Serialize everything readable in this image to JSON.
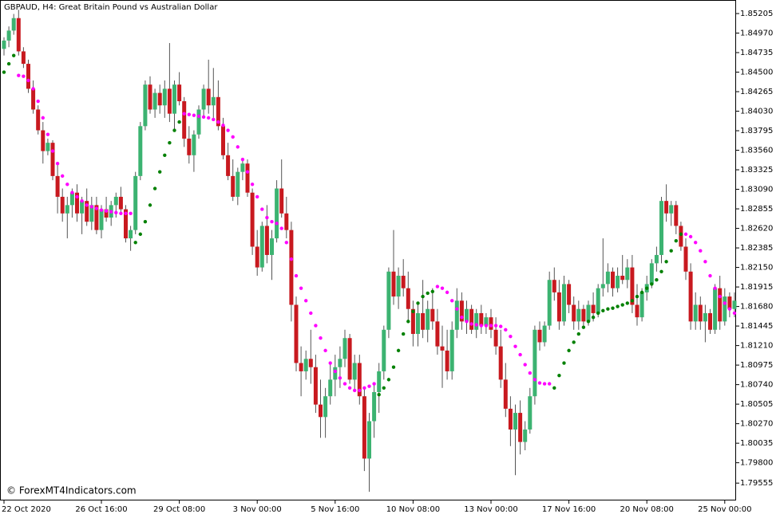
{
  "chart_data": {
    "type": "candlestick",
    "title": "GBPAUD, H4:  Great Britain Pound vs Australian Dollar",
    "watermark": "© ForexMT4Indicators.com",
    "categories": [
      "22 Oct 2020",
      null,
      null,
      null,
      null,
      null,
      null,
      null,
      null,
      null,
      null,
      null,
      null,
      null,
      null,
      null,
      null,
      null,
      null,
      null,
      "26 Oct 16:00",
      null,
      null,
      null,
      null,
      null,
      null,
      null,
      null,
      null,
      null,
      null,
      null,
      null,
      null,
      null,
      "29 Oct 08:00",
      null,
      null,
      null,
      null,
      null,
      null,
      null,
      null,
      null,
      null,
      null,
      null,
      null,
      null,
      null,
      "3 Nov 00:00",
      null,
      null,
      null,
      null,
      null,
      null,
      null,
      null,
      null,
      null,
      null,
      null,
      null,
      null,
      null,
      "5 Nov 16:00",
      null,
      null,
      null,
      null,
      null,
      null,
      null,
      null,
      null,
      null,
      null,
      null,
      null,
      null,
      null,
      "10 Nov 08:00",
      null,
      null,
      null,
      null,
      null,
      null,
      null,
      null,
      null,
      null,
      null,
      null,
      null,
      null,
      null,
      "13 Nov 00:00",
      null,
      null,
      null,
      null,
      null,
      null,
      null,
      null,
      null,
      null,
      null,
      null,
      null,
      null,
      null,
      "17 Nov 16:00",
      null,
      null,
      null,
      null,
      null,
      null,
      null,
      null,
      null,
      null,
      null,
      null,
      null,
      null,
      null,
      "20 Nov 08:00",
      null,
      null,
      null,
      null,
      null,
      null,
      null,
      null,
      null,
      null,
      null,
      null,
      null,
      null,
      null,
      "25 Nov 00:00",
      null,
      null
    ],
    "candles": [
      [
        1.8478,
        1.8492,
        1.847,
        1.8488
      ],
      [
        1.8488,
        1.8505,
        1.848,
        1.85
      ],
      [
        1.85,
        1.852,
        1.8495,
        1.8515
      ],
      [
        1.8515,
        1.8525,
        1.847,
        1.8475
      ],
      [
        1.8475,
        1.848,
        1.8455,
        1.846
      ],
      [
        1.846,
        1.8465,
        1.8425,
        1.843
      ],
      [
        1.843,
        1.844,
        1.84,
        1.8405
      ],
      [
        1.8405,
        1.841,
        1.8375,
        1.838
      ],
      [
        1.838,
        1.839,
        1.834,
        1.8355
      ],
      [
        1.8355,
        1.837,
        1.835,
        1.8365
      ],
      [
        1.8365,
        1.8368,
        1.832,
        1.8325
      ],
      [
        1.8325,
        1.834,
        1.828,
        1.83
      ],
      [
        1.83,
        1.831,
        1.827,
        1.828
      ],
      [
        1.828,
        1.83,
        1.825,
        1.829
      ],
      [
        1.829,
        1.831,
        1.8275,
        1.8305
      ],
      [
        1.8305,
        1.8315,
        1.827,
        1.828
      ],
      [
        1.828,
        1.83,
        1.8255,
        1.8295
      ],
      [
        1.8295,
        1.831,
        1.8265,
        1.827
      ],
      [
        1.827,
        1.83,
        1.826,
        1.829
      ],
      [
        1.829,
        1.83,
        1.8255,
        1.826
      ],
      [
        1.826,
        1.829,
        1.825,
        1.8285
      ],
      [
        1.8285,
        1.83,
        1.827,
        1.8275
      ],
      [
        1.8275,
        1.8295,
        1.8265,
        1.829
      ],
      [
        1.829,
        1.8305,
        1.8275,
        1.83
      ],
      [
        1.83,
        1.8312,
        1.828,
        1.8285
      ],
      [
        1.8285,
        1.829,
        1.8245,
        1.825
      ],
      [
        1.825,
        1.8265,
        1.8235,
        1.826
      ],
      [
        1.826,
        1.833,
        1.8255,
        1.8325
      ],
      [
        1.8325,
        1.839,
        1.832,
        1.8385
      ],
      [
        1.8385,
        1.844,
        1.838,
        1.8435
      ],
      [
        1.8435,
        1.8445,
        1.84,
        1.8405
      ],
      [
        1.8405,
        1.843,
        1.8395,
        1.8425
      ],
      [
        1.8425,
        1.8435,
        1.84,
        1.841
      ],
      [
        1.841,
        1.844,
        1.8395,
        1.843
      ],
      [
        1.843,
        1.8485,
        1.839,
        1.84
      ],
      [
        1.84,
        1.844,
        1.838,
        1.8435
      ],
      [
        1.8435,
        1.845,
        1.841,
        1.8415
      ],
      [
        1.8415,
        1.842,
        1.836,
        1.837
      ],
      [
        1.837,
        1.8385,
        1.834,
        1.835
      ],
      [
        1.835,
        1.838,
        1.833,
        1.8375
      ],
      [
        1.8375,
        1.841,
        1.837,
        1.8405
      ],
      [
        1.8405,
        1.8435,
        1.8395,
        1.843
      ],
      [
        1.843,
        1.8465,
        1.84,
        1.841
      ],
      [
        1.841,
        1.8455,
        1.8395,
        1.842
      ],
      [
        1.842,
        1.844,
        1.838,
        1.8385
      ],
      [
        1.8385,
        1.8395,
        1.8345,
        1.835
      ],
      [
        1.835,
        1.8365,
        1.832,
        1.8325
      ],
      [
        1.8325,
        1.8345,
        1.8295,
        1.83
      ],
      [
        1.83,
        1.8335,
        1.829,
        1.833
      ],
      [
        1.833,
        1.8345,
        1.832,
        1.834
      ],
      [
        1.834,
        1.8345,
        1.83,
        1.8305
      ],
      [
        1.8305,
        1.831,
        1.823,
        1.824
      ],
      [
        1.824,
        1.826,
        1.8205,
        1.8215
      ],
      [
        1.8215,
        1.827,
        1.821,
        1.8265
      ],
      [
        1.8265,
        1.829,
        1.822,
        1.823
      ],
      [
        1.823,
        1.826,
        1.82,
        1.825
      ],
      [
        1.825,
        1.832,
        1.8245,
        1.831
      ],
      [
        1.831,
        1.8345,
        1.8275,
        1.828
      ],
      [
        1.828,
        1.83,
        1.825,
        1.826
      ],
      [
        1.826,
        1.827,
        1.815,
        1.817
      ],
      [
        1.817,
        1.818,
        1.809,
        1.81
      ],
      [
        1.81,
        1.812,
        1.806,
        1.809
      ],
      [
        1.809,
        1.8115,
        1.808,
        1.8105
      ],
      [
        1.8105,
        1.814,
        1.8075,
        1.8095
      ],
      [
        1.8095,
        1.811,
        1.804,
        1.805
      ],
      [
        1.805,
        1.808,
        1.801,
        1.8035
      ],
      [
        1.8035,
        1.807,
        1.801,
        1.806
      ],
      [
        1.806,
        1.81,
        1.805,
        1.808
      ],
      [
        1.808,
        1.811,
        1.806,
        1.8095
      ],
      [
        1.8095,
        1.812,
        1.807,
        1.8105
      ],
      [
        1.8105,
        1.814,
        1.8095,
        1.813
      ],
      [
        1.813,
        1.8135,
        1.8075,
        1.808
      ],
      [
        1.808,
        1.811,
        1.8065,
        1.81
      ],
      [
        1.81,
        1.811,
        1.805,
        1.806
      ],
      [
        1.806,
        1.807,
        1.797,
        1.7985
      ],
      [
        1.7985,
        1.804,
        1.7945,
        1.803
      ],
      [
        1.803,
        1.8075,
        1.801,
        1.8065
      ],
      [
        1.8065,
        1.81,
        1.804,
        1.809
      ],
      [
        1.809,
        1.8145,
        1.808,
        1.814
      ],
      [
        1.814,
        1.8215,
        1.813,
        1.821
      ],
      [
        1.821,
        1.826,
        1.817,
        1.818
      ],
      [
        1.818,
        1.8215,
        1.8165,
        1.8205
      ],
      [
        1.8205,
        1.8225,
        1.818,
        1.819
      ],
      [
        1.819,
        1.821,
        1.815,
        1.8165
      ],
      [
        1.8165,
        1.8175,
        1.812,
        1.8135
      ],
      [
        1.8135,
        1.817,
        1.812,
        1.816
      ],
      [
        1.816,
        1.82,
        1.813,
        1.814
      ],
      [
        1.814,
        1.8175,
        1.8125,
        1.8165
      ],
      [
        1.8165,
        1.819,
        1.814,
        1.815
      ],
      [
        1.815,
        1.8165,
        1.811,
        1.812
      ],
      [
        1.812,
        1.8145,
        1.807,
        1.8115
      ],
      [
        1.8115,
        1.814,
        1.808,
        1.809
      ],
      [
        1.809,
        1.815,
        1.808,
        1.814
      ],
      [
        1.814,
        1.819,
        1.813,
        1.8175
      ],
      [
        1.8175,
        1.8185,
        1.814,
        1.815
      ],
      [
        1.815,
        1.8175,
        1.8135,
        1.8165
      ],
      [
        1.8165,
        1.817,
        1.8135,
        1.814
      ],
      [
        1.814,
        1.8165,
        1.813,
        1.816
      ],
      [
        1.816,
        1.817,
        1.8135,
        1.8145
      ],
      [
        1.8145,
        1.816,
        1.8135,
        1.8155
      ],
      [
        1.8155,
        1.8165,
        1.813,
        1.814
      ],
      [
        1.814,
        1.8155,
        1.811,
        1.812
      ],
      [
        1.812,
        1.814,
        1.807,
        1.808
      ],
      [
        1.808,
        1.81,
        1.8035,
        1.8045
      ],
      [
        1.8045,
        1.806,
        1.8,
        1.802
      ],
      [
        1.802,
        1.805,
        1.7965,
        1.804
      ],
      [
        1.804,
        1.8055,
        1.799,
        1.8005
      ],
      [
        1.8005,
        1.803,
        1.7995,
        1.802
      ],
      [
        1.802,
        1.807,
        1.8015,
        1.806
      ],
      [
        1.806,
        1.8145,
        1.805,
        1.814
      ],
      [
        1.814,
        1.815,
        1.8115,
        1.8125
      ],
      [
        1.8125,
        1.815,
        1.812,
        1.8145
      ],
      [
        1.8145,
        1.821,
        1.814,
        1.82
      ],
      [
        1.82,
        1.8215,
        1.8175,
        1.8185
      ],
      [
        1.8185,
        1.82,
        1.814,
        1.815
      ],
      [
        1.815,
        1.8205,
        1.8145,
        1.8195
      ],
      [
        1.8195,
        1.82,
        1.816,
        1.817
      ],
      [
        1.817,
        1.818,
        1.814,
        1.815
      ],
      [
        1.815,
        1.8175,
        1.814,
        1.8165
      ],
      [
        1.8165,
        1.817,
        1.8145,
        1.815
      ],
      [
        1.815,
        1.8175,
        1.8145,
        1.817
      ],
      [
        1.817,
        1.8185,
        1.815,
        1.816
      ],
      [
        1.816,
        1.8195,
        1.8155,
        1.819
      ],
      [
        1.819,
        1.825,
        1.818,
        1.8195
      ],
      [
        1.8195,
        1.822,
        1.8185,
        1.821
      ],
      [
        1.821,
        1.8215,
        1.818,
        1.819
      ],
      [
        1.819,
        1.8215,
        1.8185,
        1.8205
      ],
      [
        1.8205,
        1.823,
        1.8195,
        1.82
      ],
      [
        1.82,
        1.8225,
        1.819,
        1.8215
      ],
      [
        1.8215,
        1.823,
        1.816,
        1.817
      ],
      [
        1.817,
        1.8195,
        1.8145,
        1.8155
      ],
      [
        1.8155,
        1.819,
        1.815,
        1.8185
      ],
      [
        1.8185,
        1.8205,
        1.8175,
        1.8195
      ],
      [
        1.8195,
        1.8225,
        1.819,
        1.822
      ],
      [
        1.822,
        1.824,
        1.821,
        1.823
      ],
      [
        1.823,
        1.83,
        1.822,
        1.8295
      ],
      [
        1.8295,
        1.8315,
        1.827,
        1.828
      ],
      [
        1.828,
        1.8295,
        1.8265,
        1.829
      ],
      [
        1.829,
        1.8295,
        1.8255,
        1.8265
      ],
      [
        1.8265,
        1.827,
        1.8235,
        1.824
      ],
      [
        1.824,
        1.825,
        1.82,
        1.821
      ],
      [
        1.821,
        1.822,
        1.814,
        1.815
      ],
      [
        1.815,
        1.8185,
        1.814,
        1.817
      ],
      [
        1.817,
        1.818,
        1.814,
        1.815
      ],
      [
        1.815,
        1.817,
        1.8125,
        1.816
      ],
      [
        1.816,
        1.8165,
        1.8135,
        1.814
      ],
      [
        1.814,
        1.8195,
        1.8135,
        1.819
      ],
      [
        1.819,
        1.8205,
        1.814,
        1.815
      ],
      [
        1.815,
        1.819,
        1.8145,
        1.818
      ],
      [
        1.818,
        1.8185,
        1.8155,
        1.8165
      ],
      [
        1.8165,
        1.8185,
        1.8155,
        1.8175
      ]
    ],
    "up_color": "#3cb371",
    "down_color": "#c8191f",
    "wick_color": "#555555",
    "sar_below": {
      "color": "#008000",
      "values": [
        1.845,
        1.846,
        1.847,
        null,
        null,
        null,
        null,
        null,
        null,
        null,
        null,
        null,
        null,
        null,
        null,
        null,
        null,
        null,
        null,
        null,
        null,
        null,
        null,
        null,
        null,
        null,
        null,
        1.8245,
        1.8255,
        1.827,
        1.829,
        1.831,
        1.833,
        1.835,
        1.8365,
        1.838,
        1.839,
        null,
        null,
        null,
        null,
        null,
        null,
        null,
        null,
        null,
        null,
        null,
        null,
        null,
        null,
        null,
        null,
        null,
        null,
        null,
        null,
        null,
        null,
        null,
        null,
        null,
        null,
        null,
        null,
        null,
        null,
        null,
        null,
        null,
        null,
        null,
        null,
        null,
        null,
        null,
        null,
        1.8062,
        1.807,
        1.808,
        1.8095,
        1.8115,
        1.8135,
        1.815,
        1.8162,
        1.8172,
        1.818,
        1.8184,
        1.8186,
        null,
        null,
        null,
        null,
        null,
        null,
        null,
        null,
        null,
        null,
        null,
        null,
        null,
        null,
        null,
        null,
        null,
        null,
        null,
        null,
        null,
        null,
        null,
        null,
        1.807,
        1.8085,
        1.81,
        1.8115,
        1.8125,
        1.8135,
        1.8143,
        1.815,
        1.8155,
        1.816,
        1.8163,
        1.8165,
        1.8166,
        1.8168,
        1.817,
        1.8172,
        1.8175,
        1.818,
        1.8185,
        1.819,
        1.8195,
        1.82,
        1.821,
        1.8222,
        1.8235,
        1.8247,
        1.8255,
        null,
        null,
        null,
        null,
        null,
        null,
        null,
        null,
        null,
        null,
        null
      ]
    },
    "sar_above": {
      "color": "#ff00ff",
      "values": [
        null,
        null,
        null,
        1.8446,
        1.8445,
        1.844,
        1.843,
        1.8415,
        1.8395,
        1.8375,
        1.8355,
        1.834,
        1.8325,
        1.8315,
        1.8305,
        1.83,
        1.8295,
        1.829,
        1.8288,
        1.8286,
        1.8284,
        1.8283,
        1.8282,
        1.8281,
        1.828,
        1.828,
        1.828,
        null,
        null,
        null,
        null,
        null,
        null,
        null,
        null,
        null,
        null,
        1.84,
        1.8399,
        1.8398,
        1.8397,
        1.8396,
        1.8395,
        1.8393,
        1.839,
        1.8386,
        1.838,
        1.8372,
        1.836,
        1.8345,
        1.833,
        1.8315,
        1.83,
        1.8285,
        1.8275,
        1.827,
        1.8268,
        1.8262,
        1.8245,
        1.8225,
        1.8205,
        1.819,
        1.8175,
        1.816,
        1.8145,
        1.813,
        1.8115,
        1.81,
        1.809,
        1.8082,
        1.8075,
        1.807,
        1.8067,
        1.8067,
        1.807,
        1.8072,
        1.8075,
        null,
        null,
        null,
        null,
        null,
        null,
        null,
        null,
        null,
        null,
        null,
        null,
        1.8192,
        1.819,
        1.8185,
        1.8175,
        1.8165,
        1.8155,
        1.815,
        1.8147,
        1.8146,
        1.8145,
        1.8145,
        1.8145,
        1.8145,
        1.8144,
        1.814,
        1.8132,
        1.812,
        1.811,
        1.8098,
        1.8088,
        1.808,
        1.8076,
        1.8075,
        1.8075,
        null,
        null,
        null,
        null,
        null,
        null,
        null,
        null,
        null,
        null,
        null,
        null,
        null,
        null,
        null,
        null,
        null,
        null,
        null,
        null,
        null,
        null,
        null,
        null,
        null,
        null,
        null,
        1.8255,
        1.8252,
        1.8245,
        1.8235,
        1.8222,
        1.8205,
        1.819,
        1.818,
        1.8172,
        1.8165,
        1.816
      ]
    },
    "ylim": [
      1.79346,
      1.85368
    ],
    "yticks": [
      1.85205,
      {
        "value": 1.8497,
        "label": "1.84970"
      },
      1.84735,
      {
        "value": 1.845,
        "label": "1.84500"
      },
      1.84265,
      {
        "value": 1.8403,
        "label": "1.84030"
      },
      1.83795,
      {
        "value": 1.8356,
        "label": "1.83560"
      },
      1.83325,
      {
        "value": 1.8309,
        "label": "1.83090"
      },
      1.82855,
      {
        "value": 1.8262,
        "label": "1.82620"
      },
      1.82385,
      {
        "value": 1.8215,
        "label": "1.82150"
      },
      1.81915,
      {
        "value": 1.8168,
        "label": "1.81680"
      },
      1.81445,
      {
        "value": 1.8121,
        "label": "1.81210"
      },
      1.80975,
      {
        "value": 1.8074,
        "label": "1.80740"
      },
      1.80505,
      {
        "value": 1.8027,
        "label": "1.80270"
      },
      1.80035,
      {
        "value": 1.798,
        "label": "1.79800"
      },
      1.79555
    ]
  }
}
